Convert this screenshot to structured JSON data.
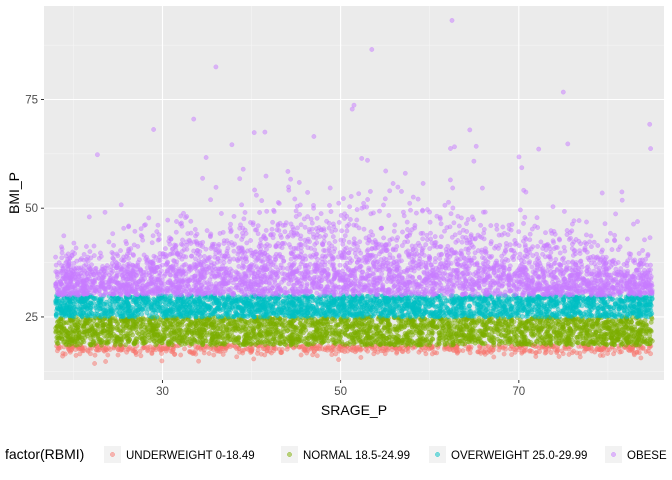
{
  "chart_data": {
    "type": "scatter",
    "title": "",
    "xlabel": "SRAGE_P",
    "ylabel": "BMI_P",
    "xlim": [
      16.7,
      86.3
    ],
    "ylim": [
      10.5,
      96.5
    ],
    "x_ticks": [
      30,
      50,
      70
    ],
    "y_ticks": [
      25,
      50,
      75
    ],
    "grid": true,
    "legend_position": "bottom",
    "legend_title": "factor(RBMI)",
    "series": [
      {
        "name": "UNDERWEIGHT 0-18.49",
        "color": "#F8766D",
        "x_range": [
          18,
          85
        ],
        "y_range": [
          12.5,
          18.49
        ],
        "density": "medium"
      },
      {
        "name": "NORMAL 18.5-24.99",
        "color": "#7CAE00",
        "x_range": [
          18,
          85
        ],
        "y_range": [
          18.5,
          24.99
        ],
        "density": "high"
      },
      {
        "name": "OVERWEIGHT 25.0-29.99",
        "color": "#00BFC4",
        "x_range": [
          18,
          85
        ],
        "y_range": [
          25.0,
          29.99
        ],
        "density": "high"
      },
      {
        "name": "OBESE",
        "color": "#C77CFF",
        "x_range": [
          18,
          85
        ],
        "y_range": [
          30,
          93
        ],
        "density": "high",
        "notable_points": [
          {
            "x": 62.5,
            "y": 93.2
          },
          {
            "x": 53.5,
            "y": 86.5
          },
          {
            "x": 36,
            "y": 82.5
          },
          {
            "x": 75,
            "y": 76.7
          },
          {
            "x": 51.5,
            "y": 73.7
          },
          {
            "x": 51.3,
            "y": 72.8
          },
          {
            "x": 33.5,
            "y": 70.5
          },
          {
            "x": 84.7,
            "y": 69.3
          },
          {
            "x": 29,
            "y": 68.1
          },
          {
            "x": 40.3,
            "y": 67.4
          },
          {
            "x": 41.5,
            "y": 67.5
          },
          {
            "x": 47,
            "y": 66.5
          },
          {
            "x": 64.5,
            "y": 68
          },
          {
            "x": 75.5,
            "y": 64.8
          },
          {
            "x": 84.8,
            "y": 63.7
          },
          {
            "x": 22.7,
            "y": 62.3
          }
        ]
      }
    ]
  }
}
